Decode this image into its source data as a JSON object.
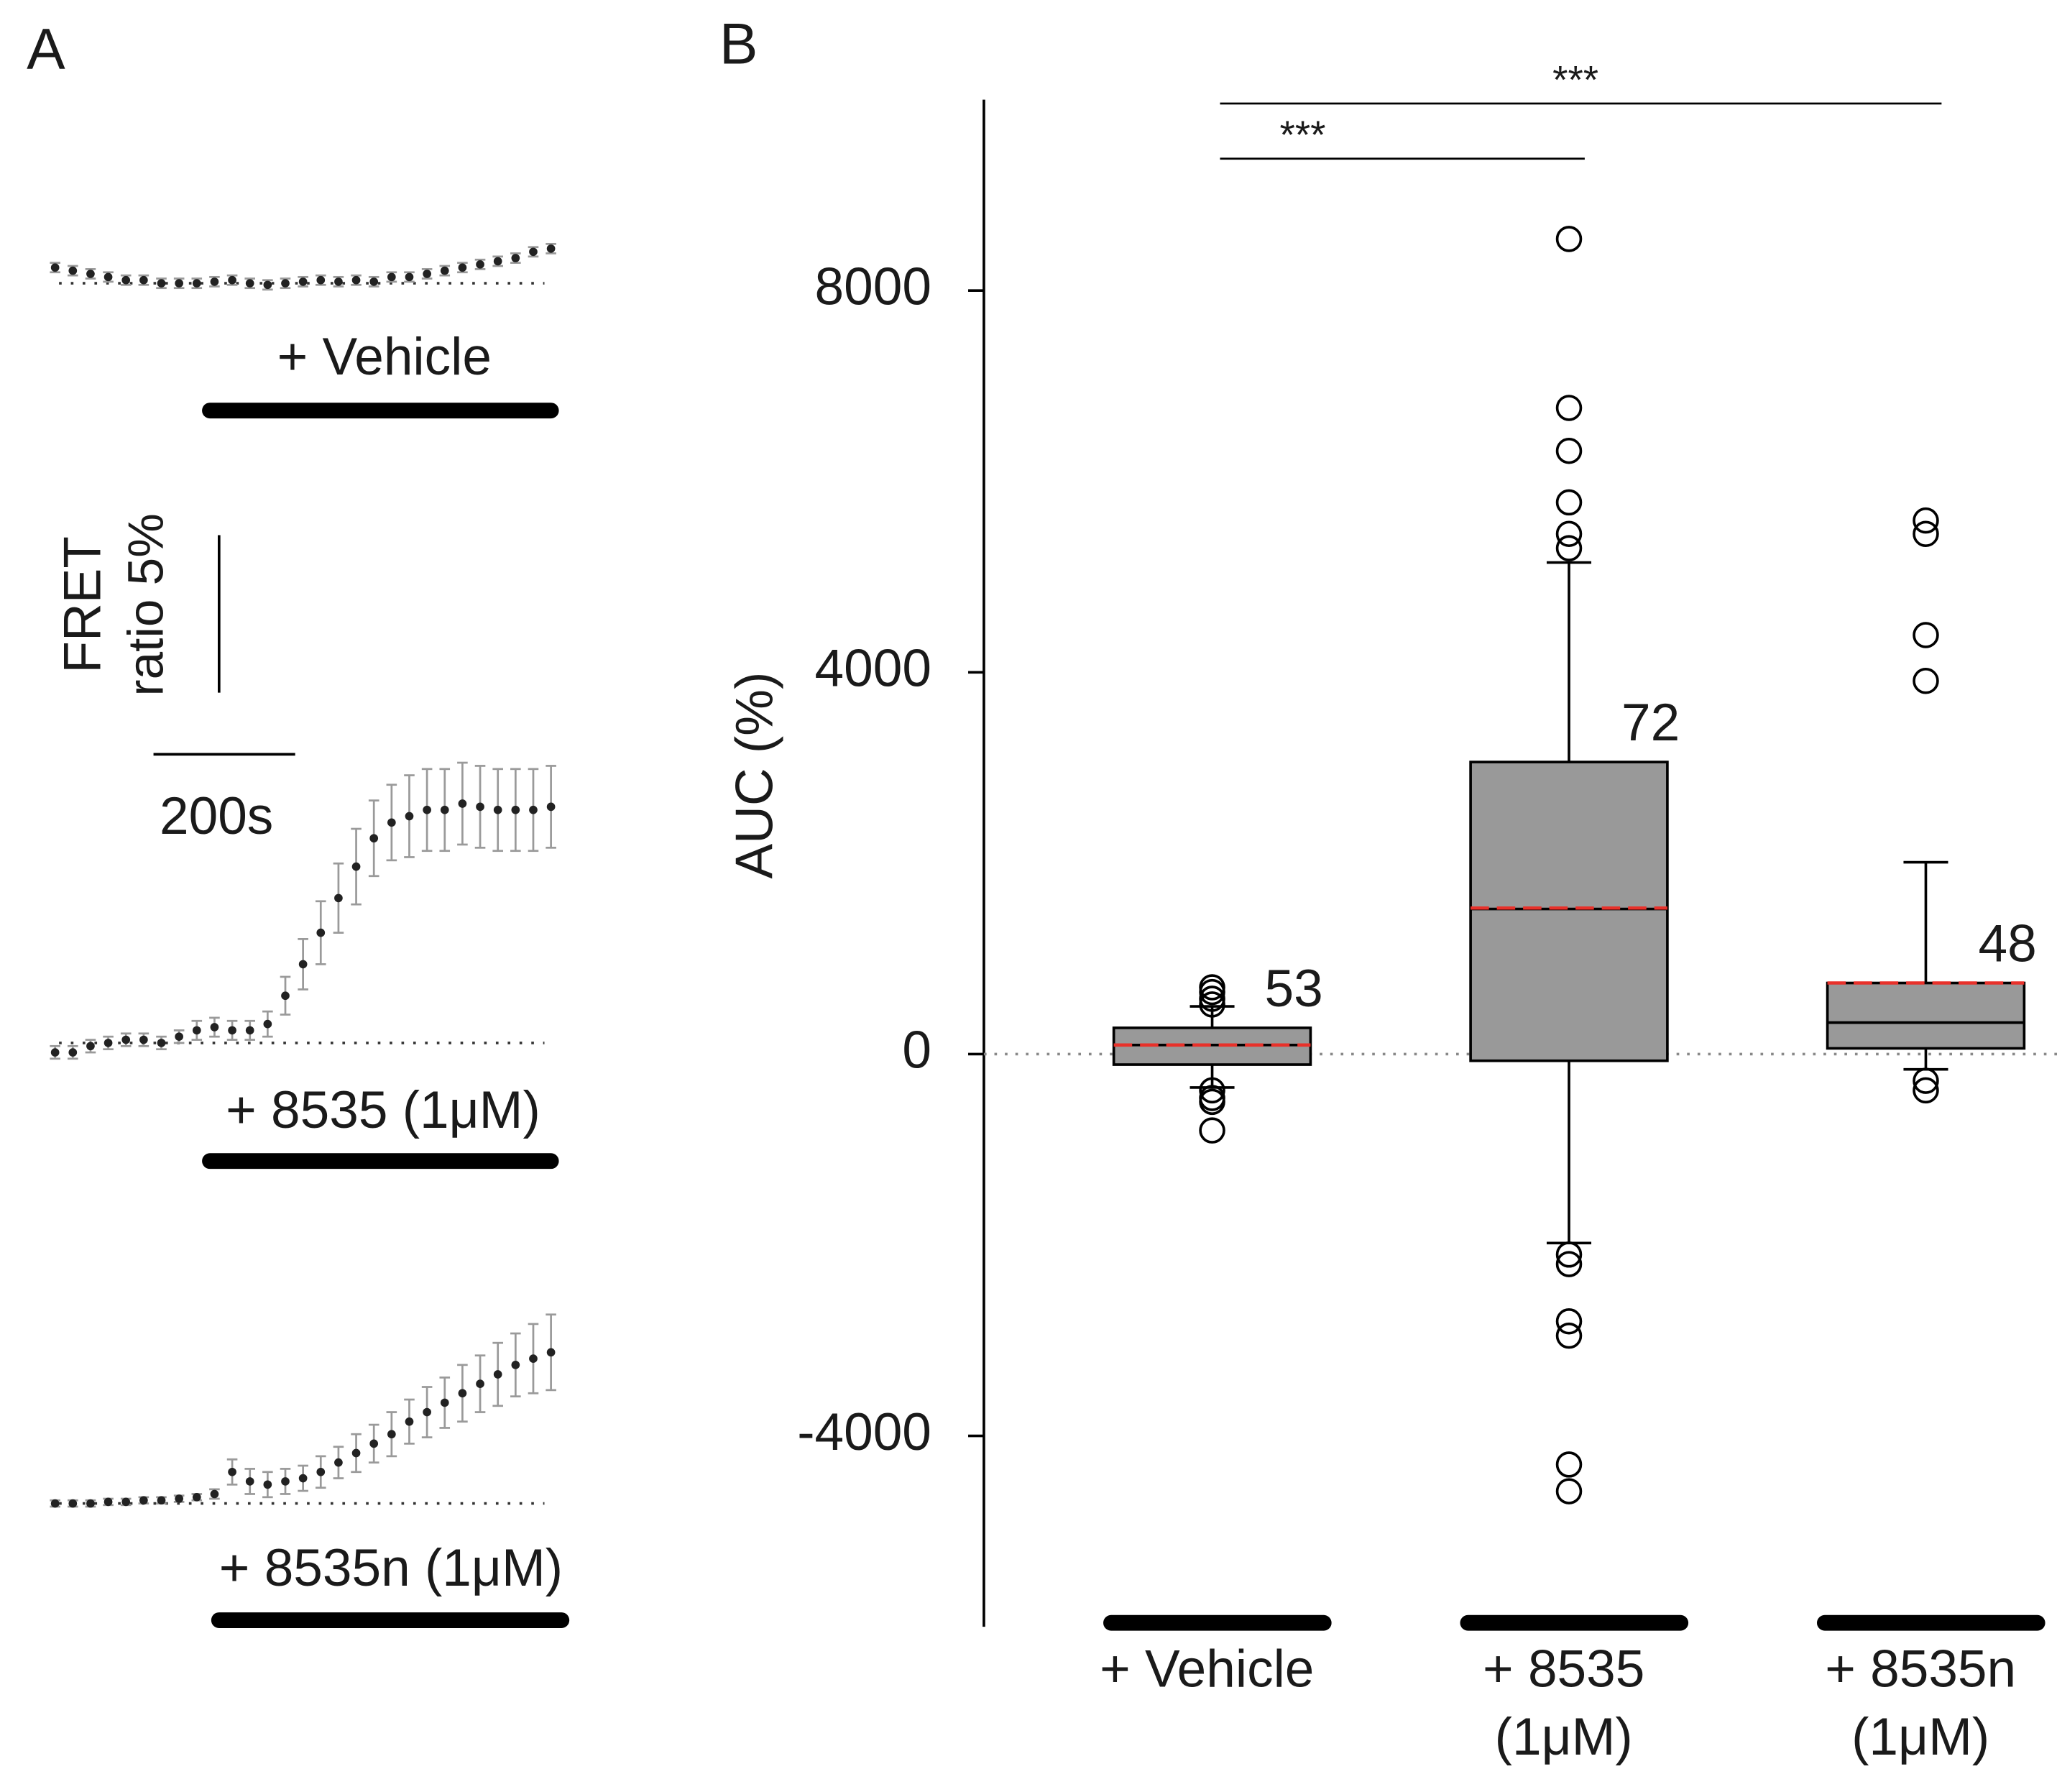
{
  "chart_data": [
    {
      "type": "line",
      "panel": "A",
      "x": [
        0,
        25,
        50,
        75,
        100,
        125,
        150,
        175,
        200,
        225,
        250,
        275,
        300,
        325,
        350,
        375,
        400,
        425,
        450,
        475,
        500,
        525,
        550,
        575,
        600,
        625,
        650,
        675,
        700
      ],
      "series": [
        {
          "name": "+ Vehicle",
          "color": "#222222",
          "error_color": "#9a9a9a",
          "values": [
            0.5,
            0.4,
            0.3,
            0.2,
            0.1,
            0.1,
            0,
            0,
            0,
            0.05,
            0.1,
            0,
            -0.05,
            0,
            0.05,
            0.1,
            0.05,
            0.1,
            0.05,
            0.2,
            0.2,
            0.3,
            0.4,
            0.5,
            0.6,
            0.7,
            0.8,
            1.0,
            1.1
          ],
          "errors": [
            0.15,
            0.15,
            0.15,
            0.15,
            0.15,
            0.15,
            0.15,
            0.15,
            0.15,
            0.15,
            0.15,
            0.15,
            0.15,
            0.15,
            0.15,
            0.15,
            0.15,
            0.15,
            0.15,
            0.15,
            0.15,
            0.15,
            0.15,
            0.15,
            0.15,
            0.15,
            0.15,
            0.15,
            0.15
          ]
        },
        {
          "name": "+ 8535 (1μM)",
          "color": "#222222",
          "error_color": "#9a9a9a",
          "values": [
            -0.3,
            -0.3,
            -0.1,
            0,
            0.1,
            0.1,
            0,
            0.2,
            0.4,
            0.5,
            0.4,
            0.4,
            0.6,
            1.5,
            2.5,
            3.5,
            4.6,
            5.6,
            6.5,
            7.0,
            7.2,
            7.4,
            7.4,
            7.6,
            7.5,
            7.4,
            7.4,
            7.4,
            7.5
          ],
          "errors": [
            0.2,
            0.2,
            0.2,
            0.2,
            0.2,
            0.2,
            0.2,
            0.2,
            0.3,
            0.3,
            0.3,
            0.3,
            0.4,
            0.6,
            0.8,
            1.0,
            1.1,
            1.2,
            1.2,
            1.2,
            1.3,
            1.3,
            1.3,
            1.3,
            1.3,
            1.3,
            1.3,
            1.3,
            1.3
          ]
        },
        {
          "name": "+ 8535n (1μM)",
          "color": "#222222",
          "error_color": "#9a9a9a",
          "values": [
            0,
            0,
            0,
            0.05,
            0.05,
            0.1,
            0.1,
            0.15,
            0.2,
            0.3,
            1.0,
            0.7,
            0.6,
            0.7,
            0.8,
            1.0,
            1.3,
            1.6,
            1.9,
            2.2,
            2.6,
            2.9,
            3.2,
            3.5,
            3.8,
            4.1,
            4.4,
            4.6,
            4.8
          ],
          "errors": [
            0.1,
            0.1,
            0.1,
            0.1,
            0.1,
            0.1,
            0.1,
            0.1,
            0.1,
            0.15,
            0.4,
            0.4,
            0.4,
            0.4,
            0.4,
            0.5,
            0.5,
            0.6,
            0.6,
            0.7,
            0.7,
            0.8,
            0.8,
            0.9,
            0.9,
            1.0,
            1.0,
            1.1,
            1.2
          ]
        }
      ],
      "scale_bar": {
        "y_label": [
          "FRET",
          "ratio 5%"
        ],
        "y_value": 5,
        "x_label": "200s",
        "x_value": 200
      }
    },
    {
      "type": "box",
      "panel": "B",
      "ylabel": "AUC (%)",
      "ylim": [
        -6000,
        10000
      ],
      "yticks": [
        -4000,
        0,
        4000,
        8000
      ],
      "categories": [
        [
          "+ Vehicle"
        ],
        [
          "+ 8535",
          "(1μM)"
        ],
        [
          "+ 8535n",
          "(1μM)"
        ]
      ],
      "fill": "#999999",
      "mean_color": "#e8312a",
      "zero_line": true,
      "boxes": [
        {
          "q1": -110,
          "median": 95,
          "q3": 275,
          "mean": 95,
          "whisker_low": -350,
          "whisker_high": 500,
          "outliers": [
            700,
            650,
            580,
            520,
            -380,
            -460,
            -500,
            -800
          ],
          "n": 53
        },
        {
          "q1": -70,
          "median": 1520,
          "q3": 3060,
          "mean": 1530,
          "whisker_low": -1980,
          "whisker_high": 5150,
          "outliers": [
            8540,
            6770,
            6320,
            5780,
            5450,
            5300,
            -2100,
            -2200,
            -2800,
            -2950,
            -4300,
            -4580
          ],
          "n": 72
        },
        {
          "q1": 60,
          "median": 330,
          "q3": 745,
          "mean": 745,
          "whisker_low": -160,
          "whisker_high": 2010,
          "outliers": [
            5590,
            5450,
            4390,
            3910,
            -280,
            -380
          ],
          "n": 48
        }
      ],
      "significance": [
        {
          "from": 0,
          "to": 1,
          "label": "***"
        },
        {
          "from": 0,
          "to": 2,
          "label": "***"
        }
      ]
    }
  ]
}
